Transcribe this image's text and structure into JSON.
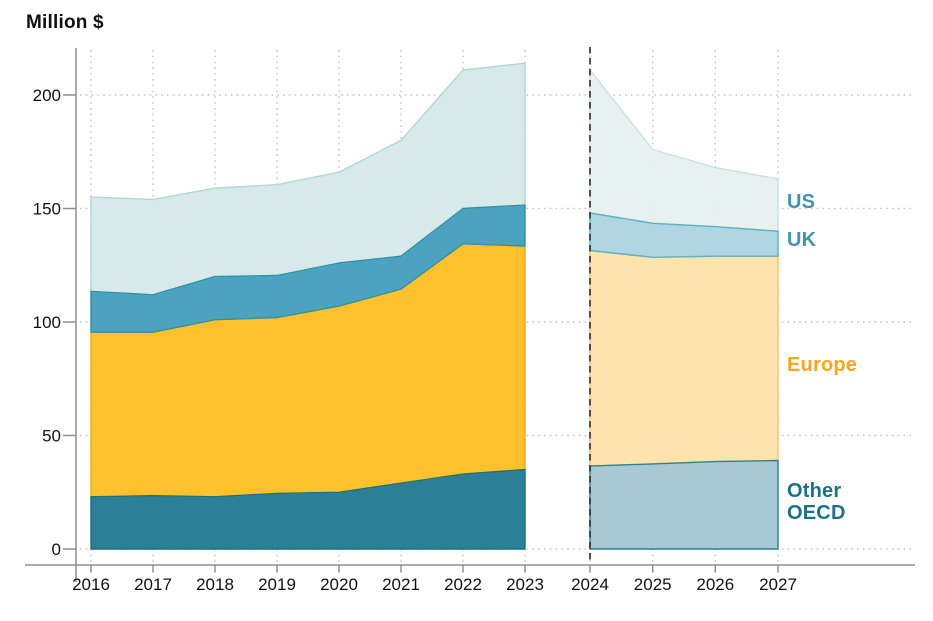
{
  "title": "Million $",
  "legend": {
    "us": "US",
    "uk": "UK",
    "europe": "Europe",
    "other_oecd": "Other OECD"
  },
  "colors": {
    "legend": {
      "us": "#3f94b0",
      "uk": "#3f94b0",
      "europe": "#f9a51d",
      "other_oecd": "#1c7088"
    },
    "fill_hist": {
      "other_oecd": "#2b7f96",
      "europe": "#fdc12d",
      "uk": "#4ba3bf",
      "us": "#d7e9e9"
    },
    "stroke_hist": {
      "other_oecd": "#17707f",
      "europe": "#f5a81c",
      "uk": "#2e8fa9",
      "us": "#b2d6d8"
    },
    "fill_forecast": {
      "other_oecd": "#a0c4cf",
      "europe": "#fde2a6",
      "uk": "#a9d1e1",
      "us": "#e4f0ef"
    },
    "stroke_forecast": {
      "other_oecd": "#2f7f96",
      "europe": "#f9c460",
      "uk": "#5fafc9",
      "us": "#c8e2e2"
    },
    "axis": "#8f8f8f",
    "grid": "#c4c4c4",
    "text": "#121212",
    "forecast_divider": "#2b2b2b"
  },
  "chart_data": {
    "type": "area",
    "stacked": true,
    "title": "Million $",
    "ylabel": "Million $",
    "ylim": [
      0,
      220
    ],
    "yticks": [
      0,
      50,
      100,
      150,
      200
    ],
    "grid": "dotted",
    "legend_position": "right",
    "x_hist": [
      2016,
      2017,
      2018,
      2019,
      2020,
      2021,
      2022,
      2023
    ],
    "x_forecast": [
      2024,
      2025,
      2026,
      2027
    ],
    "forecast_divider_x": 2024,
    "series": [
      {
        "id": "other_oecd",
        "name": "Other OECD",
        "hist": [
          23,
          23.5,
          23,
          24.5,
          25,
          29,
          33,
          35
        ],
        "forecast": [
          36.5,
          37.5,
          38.5,
          39
        ]
      },
      {
        "id": "europe",
        "name": "Europe",
        "hist": [
          72.5,
          72,
          78,
          77.5,
          82,
          85.5,
          101.5,
          98.5
        ],
        "forecast": [
          95,
          91,
          90.5,
          90
        ]
      },
      {
        "id": "uk",
        "name": "UK",
        "hist": [
          18,
          16.5,
          19,
          18.5,
          19,
          14.5,
          15.5,
          18
        ],
        "forecast": [
          16.5,
          15,
          13,
          11
        ]
      },
      {
        "id": "us",
        "name": "US",
        "hist": [
          41.5,
          42,
          39,
          40,
          40,
          51,
          61,
          62.5
        ],
        "forecast": [
          63,
          32.5,
          26,
          23
        ]
      }
    ],
    "stacked_tops": {
      "other_oecd": {
        "hist": [
          23,
          23.5,
          23,
          24.5,
          25,
          29,
          33,
          35
        ],
        "forecast": [
          36.5,
          37.5,
          38.5,
          39
        ]
      },
      "europe": {
        "hist": [
          95.5,
          95.5,
          101,
          102,
          107,
          114.5,
          134.5,
          133.5
        ],
        "forecast": [
          131.5,
          128.5,
          129,
          129
        ]
      },
      "uk": {
        "hist": [
          113.5,
          112,
          120,
          120.5,
          126,
          129,
          150,
          151.5
        ],
        "forecast": [
          148,
          143.5,
          142,
          140
        ]
      },
      "us_total": {
        "hist": [
          155,
          154,
          159,
          160.5,
          166,
          180,
          211,
          214
        ],
        "forecast": [
          211,
          176,
          168,
          163
        ]
      }
    }
  }
}
